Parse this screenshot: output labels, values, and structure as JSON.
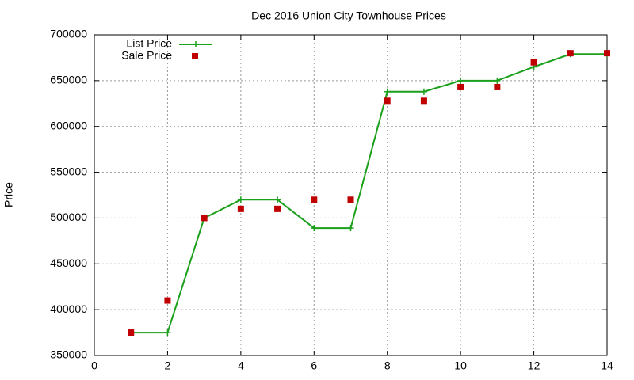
{
  "chart_data": {
    "type": "line",
    "title": "Dec 2016 Union City Townhouse Prices",
    "y_label": "Price",
    "x": [
      1,
      2,
      3,
      4,
      5,
      6,
      7,
      8,
      9,
      10,
      11,
      12,
      13,
      14
    ],
    "series": [
      {
        "name": "List Price",
        "color": "#1aa01a",
        "style": "linespoints",
        "values": [
          375000,
          375000,
          500000,
          520000,
          520000,
          489000,
          489000,
          638000,
          638000,
          650000,
          650000,
          665000,
          679000,
          679000
        ]
      },
      {
        "name": "Sale Price",
        "color": "#c00000",
        "style": "points",
        "values": [
          375000,
          410000,
          500000,
          510000,
          510000,
          520000,
          520000,
          628000,
          628000,
          643000,
          643000,
          670000,
          680000,
          680000
        ]
      }
    ],
    "xlim": [
      0,
      14
    ],
    "xticks": [
      0,
      2,
      4,
      6,
      8,
      10,
      12,
      14
    ],
    "ylim": [
      350000,
      700000
    ],
    "yticks": [
      350000,
      400000,
      450000,
      500000,
      550000,
      600000,
      650000,
      700000
    ],
    "grid": true,
    "legend": "top-left"
  }
}
